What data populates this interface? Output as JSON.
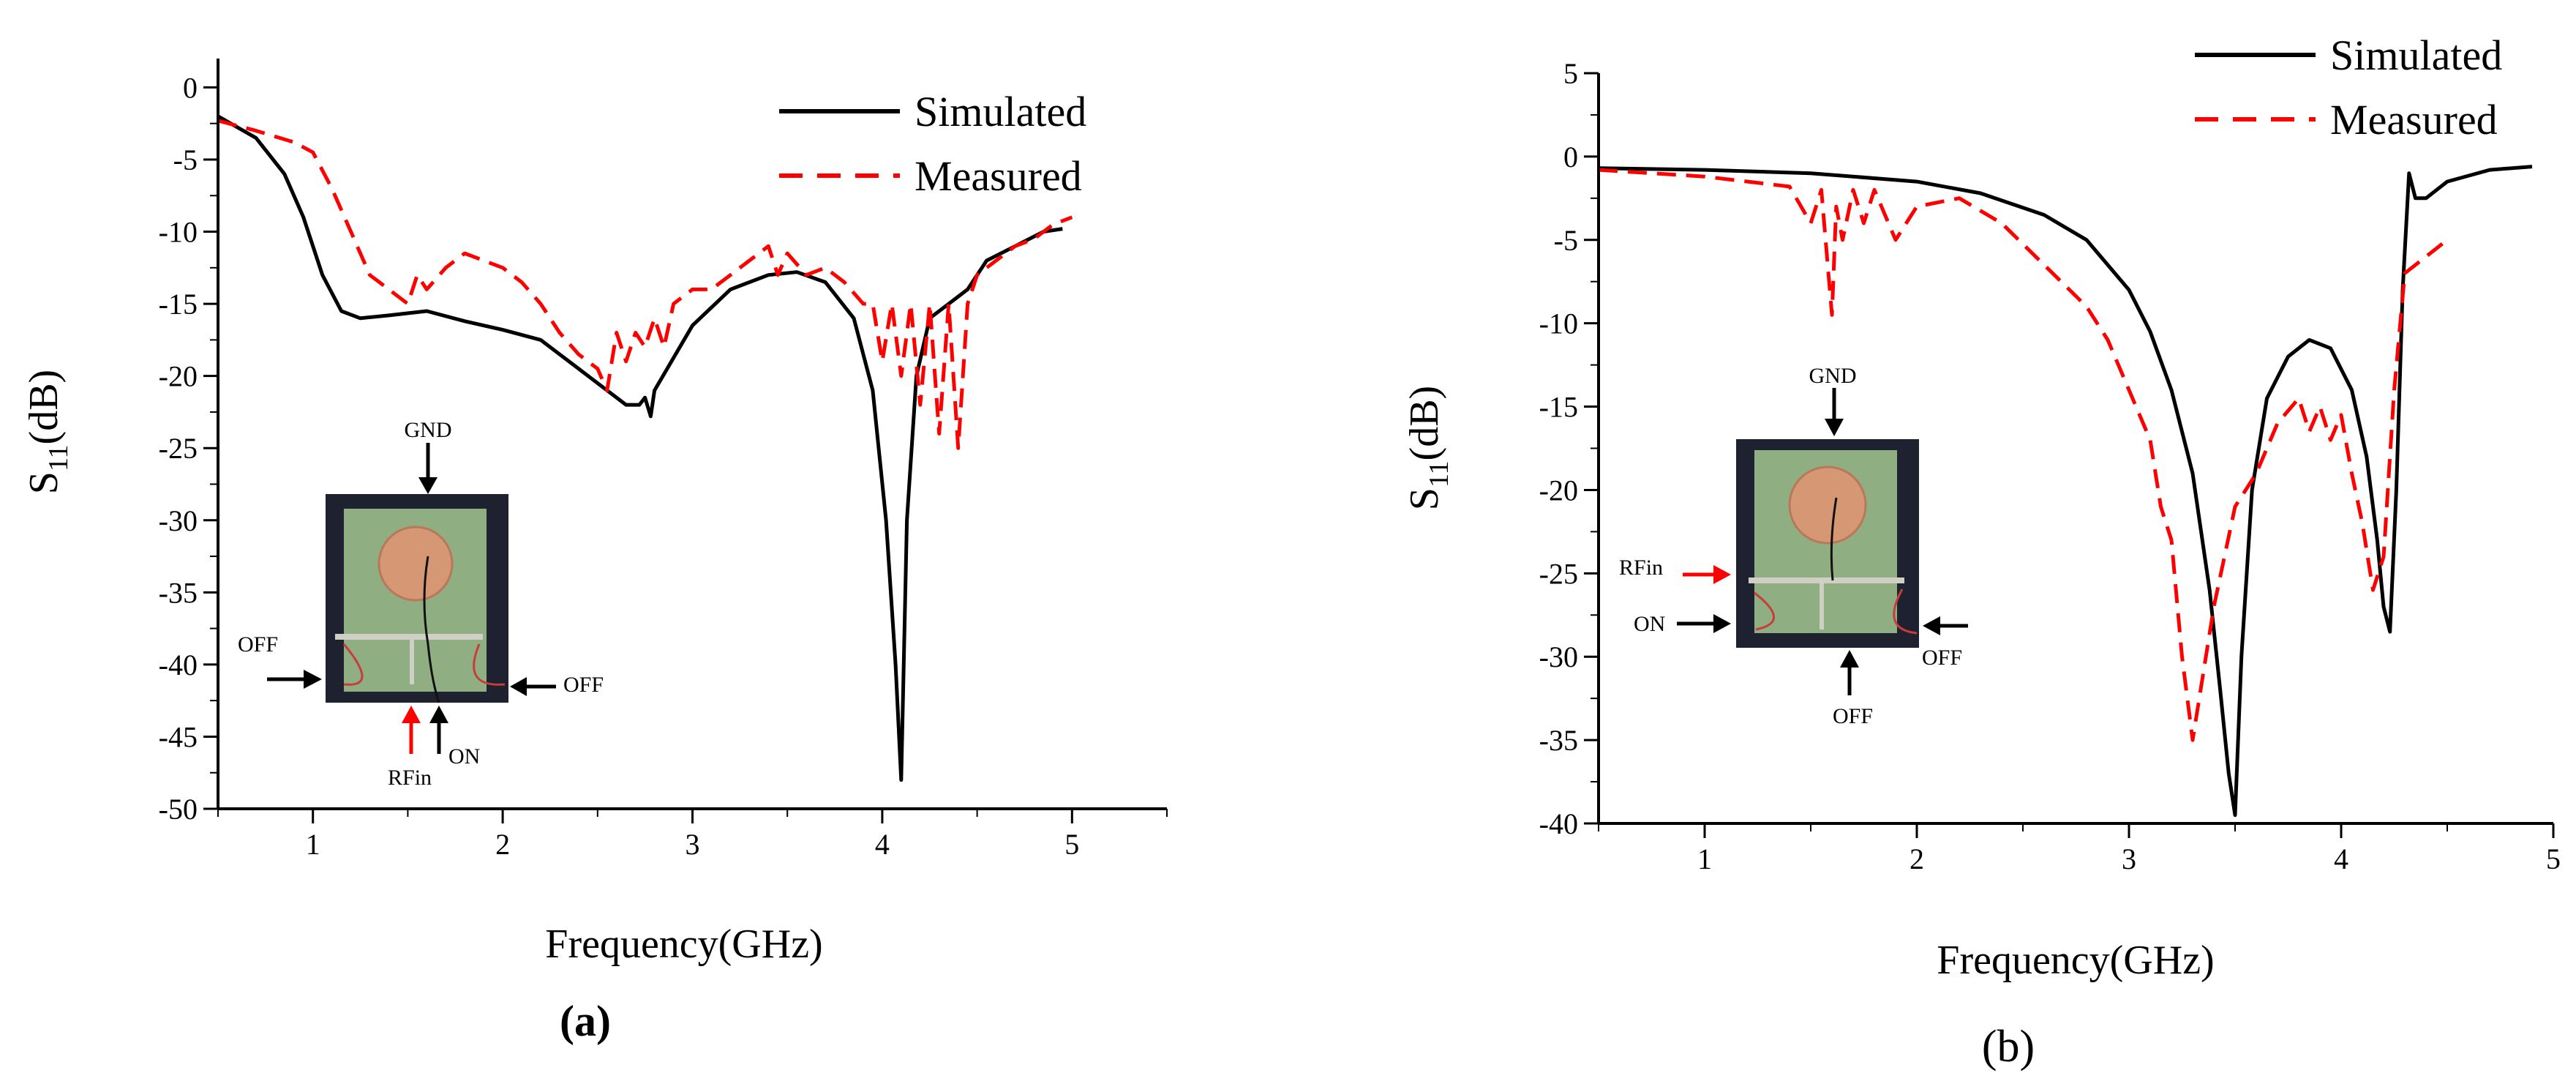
{
  "chart_data": [
    {
      "type": "line",
      "panel_label": "(a)",
      "xlabel": "Frequency(GHz)",
      "ylabel_main": "S",
      "ylabel_sub": "11",
      "ylabel_unit": "(dB)",
      "xlim": [
        0.5,
        5.5
      ],
      "ylim": [
        -50,
        2
      ],
      "xticks": [
        1,
        2,
        3,
        4,
        5
      ],
      "yticks": [
        0,
        -5,
        -10,
        -15,
        -20,
        -25,
        -30,
        -35,
        -40,
        -45,
        -50
      ],
      "legend": [
        "Simulated",
        "Measured"
      ],
      "legend_position": "top-right",
      "series": [
        {
          "name": "Simulated",
          "color": "#000000",
          "style": "solid",
          "x": [
            0.5,
            0.7,
            0.85,
            0.95,
            1.05,
            1.15,
            1.25,
            1.4,
            1.6,
            1.8,
            2.0,
            2.2,
            2.4,
            2.55,
            2.65,
            2.72,
            2.75,
            2.78,
            2.8,
            3.0,
            3.2,
            3.4,
            3.55,
            3.7,
            3.85,
            3.95,
            4.02,
            4.07,
            4.1,
            4.13,
            4.18,
            4.25,
            4.35,
            4.45,
            4.55,
            4.7,
            4.85,
            4.95
          ],
          "y": [
            -2,
            -3.5,
            -6,
            -9,
            -13,
            -15.5,
            -16,
            -15.8,
            -15.5,
            -16.2,
            -16.8,
            -17.5,
            -19.5,
            -21,
            -22,
            -22,
            -21.5,
            -22.8,
            -21,
            -16.5,
            -14,
            -13,
            -12.8,
            -13.5,
            -16,
            -21,
            -30,
            -40,
            -48,
            -30,
            -20,
            -16,
            -15,
            -14,
            -12,
            -11,
            -10,
            -9.8
          ]
        },
        {
          "name": "Measured",
          "color": "#ff0000",
          "style": "dashed",
          "x": [
            0.5,
            0.7,
            0.9,
            1.0,
            1.1,
            1.2,
            1.3,
            1.4,
            1.5,
            1.55,
            1.6,
            1.7,
            1.8,
            1.9,
            2.0,
            2.1,
            2.2,
            2.3,
            2.4,
            2.5,
            2.55,
            2.6,
            2.65,
            2.7,
            2.75,
            2.8,
            2.85,
            2.9,
            3.0,
            3.1,
            3.2,
            3.3,
            3.4,
            3.45,
            3.5,
            3.6,
            3.7,
            3.8,
            3.9,
            3.95,
            4.0,
            4.05,
            4.1,
            4.15,
            4.2,
            4.25,
            4.3,
            4.35,
            4.4,
            4.45,
            4.5,
            4.6,
            4.7,
            4.8,
            4.9,
            5.0
          ],
          "y": [
            -2.3,
            -3,
            -3.8,
            -4.5,
            -7,
            -10,
            -13,
            -14,
            -15,
            -13,
            -14,
            -12.5,
            -11.5,
            -12,
            -12.5,
            -13.5,
            -15,
            -17,
            -18.5,
            -19.5,
            -21,
            -17,
            -19,
            -17,
            -18,
            -16,
            -18,
            -15,
            -14,
            -14,
            -13,
            -12,
            -11,
            -13,
            -11.5,
            -13,
            -12.5,
            -13.5,
            -15,
            -15,
            -19,
            -15,
            -20,
            -15,
            -22,
            -15,
            -24,
            -15,
            -25,
            -15,
            -13,
            -12,
            -11,
            -10.5,
            -9.5,
            -9
          ]
        }
      ],
      "inset": {
        "labels": {
          "gnd": "GND",
          "off_left": "OFF",
          "off_right": "OFF",
          "rfin": "RFin",
          "on": "ON"
        }
      }
    },
    {
      "type": "line",
      "panel_label": "(b)",
      "xlabel": "Frequency(GHz)",
      "ylabel_main": "S",
      "ylabel_sub": "11",
      "ylabel_unit": "(dB)",
      "xlim": [
        0.5,
        5.0
      ],
      "ylim": [
        -40,
        5
      ],
      "xticks": [
        1,
        2,
        3,
        4,
        5
      ],
      "yticks": [
        5,
        0,
        -5,
        -10,
        -15,
        -20,
        -25,
        -30,
        -35,
        -40
      ],
      "legend": [
        "Simulated",
        "Measured"
      ],
      "legend_position": "top-right",
      "series": [
        {
          "name": "Simulated",
          "color": "#000000",
          "style": "solid",
          "x": [
            0.5,
            1.0,
            1.5,
            2.0,
            2.3,
            2.6,
            2.8,
            3.0,
            3.1,
            3.2,
            3.3,
            3.38,
            3.43,
            3.47,
            3.5,
            3.53,
            3.58,
            3.65,
            3.75,
            3.85,
            3.95,
            4.05,
            4.12,
            4.17,
            4.2,
            4.23,
            4.26,
            4.29,
            4.32,
            4.35,
            4.4,
            4.5,
            4.7,
            4.9
          ],
          "y": [
            -0.7,
            -0.8,
            -1.0,
            -1.5,
            -2.2,
            -3.5,
            -5,
            -8,
            -10.5,
            -14,
            -19,
            -26,
            -32,
            -37,
            -39.5,
            -30,
            -20,
            -14.5,
            -12,
            -11,
            -11.5,
            -14,
            -18,
            -23,
            -27,
            -28.5,
            -20,
            -8,
            -1,
            -2.5,
            -2.5,
            -1.5,
            -0.8,
            -0.6
          ]
        },
        {
          "name": "Measured",
          "color": "#ff0000",
          "style": "dashed",
          "x": [
            0.5,
            1.0,
            1.4,
            1.5,
            1.55,
            1.6,
            1.62,
            1.65,
            1.7,
            1.75,
            1.8,
            1.9,
            2.0,
            2.2,
            2.4,
            2.6,
            2.8,
            2.9,
            3.0,
            3.1,
            3.15,
            3.2,
            3.25,
            3.3,
            3.35,
            3.4,
            3.45,
            3.5,
            3.6,
            3.7,
            3.8,
            3.85,
            3.9,
            3.95,
            4.0,
            4.05,
            4.1,
            4.15,
            4.2,
            4.25,
            4.3,
            4.4,
            4.5
          ],
          "y": [
            -0.8,
            -1.2,
            -1.8,
            -4,
            -2,
            -9.5,
            -3,
            -5,
            -2,
            -4,
            -2,
            -5,
            -3,
            -2.5,
            -4,
            -6.5,
            -9,
            -11,
            -14,
            -17,
            -21,
            -23,
            -30,
            -35,
            -31,
            -27,
            -24,
            -21,
            -19,
            -16,
            -14.5,
            -16.5,
            -15,
            -17,
            -15.5,
            -19,
            -22,
            -26,
            -24,
            -14,
            -7,
            -6,
            -5
          ]
        }
      ],
      "inset": {
        "labels": {
          "gnd": "GND",
          "rfin": "RFin",
          "on": "ON",
          "off_right": "OFF",
          "off_bottom": "OFF"
        }
      }
    }
  ]
}
